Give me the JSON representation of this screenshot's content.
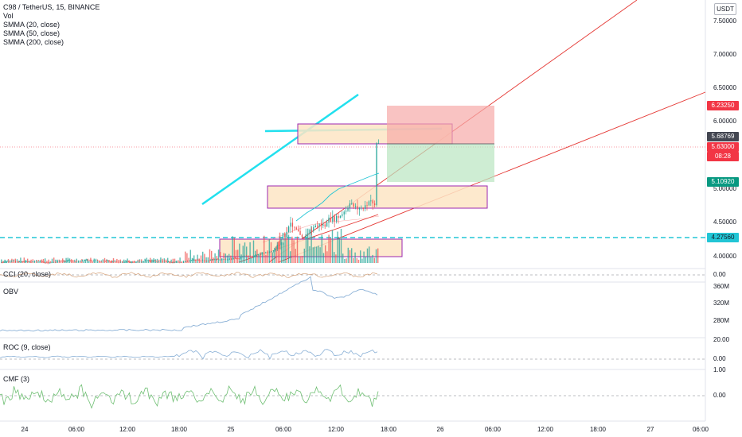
{
  "symbol": {
    "title": "C98 / TetherUS, 15, BINANCE"
  },
  "indicators": {
    "main": [
      "Vol",
      "SMMA (20, close)",
      "SMMA (50, close)",
      "SMMA (200, close)"
    ],
    "cci": "CCI (20, close)",
    "obv": "OBV",
    "roc": "ROC (9, close)",
    "cmf": "CMF (3)"
  },
  "price_axis": {
    "currency": "USDT",
    "ticks": [
      "7.50000",
      "7.00000",
      "6.50000",
      "6.00000",
      "5.00000",
      "4.50000",
      "4.00000"
    ]
  },
  "price_tags": {
    "target": {
      "value": "6.23250",
      "color": "#f23645"
    },
    "last_high": {
      "value": "5.68769",
      "color": "#434651"
    },
    "current": {
      "value": "5.63000",
      "color": "#f23645"
    },
    "countdown": {
      "value": "08:28",
      "color": "#f23645"
    },
    "stop": {
      "value": "5.10920",
      "color": "#089981"
    },
    "support": {
      "value": "4.27560",
      "color": "#22c5d5"
    }
  },
  "subpanes": {
    "cci": {
      "ticks": [
        "0.00"
      ]
    },
    "obv": {
      "ticks": [
        "360M",
        "320M",
        "280M"
      ]
    },
    "roc": {
      "ticks": [
        "20.00",
        "0.00"
      ]
    },
    "cmf": {
      "ticks": [
        "1.00",
        "0.00"
      ]
    }
  },
  "time_axis": [
    "24",
    "06:00",
    "12:00",
    "18:00",
    "25",
    "06:00",
    "12:00",
    "18:00",
    "26",
    "06:00",
    "12:00",
    "18:00",
    "27",
    "06:00"
  ],
  "colors": {
    "up": "#26a69a",
    "down": "#ef5350",
    "trendline": "#e53935",
    "cyan": "#22e0ee",
    "zone_fill": "#fde5c4",
    "zone_border": "#9c27b0"
  }
}
